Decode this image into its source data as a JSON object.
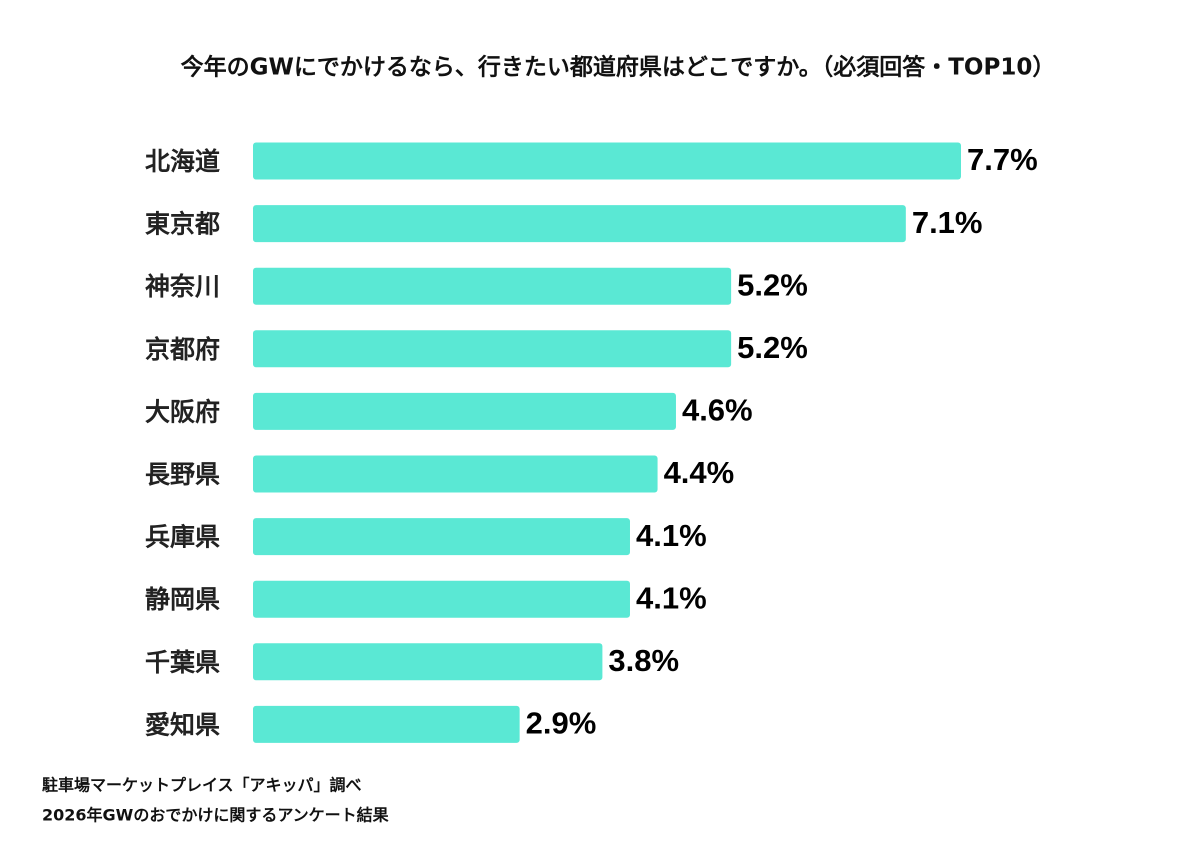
{
  "chart_data": {
    "type": "bar",
    "orientation": "horizontal",
    "title": "今年のGWにでかけるなら、行きたい都道府県はどこですか。（必須回答・TOP10）",
    "categories": [
      "北海道",
      "東京都",
      "神奈川",
      "京都府",
      "大阪府",
      "長野県",
      "兵庫県",
      "静岡県",
      "千葉県",
      "愛知県"
    ],
    "values": [
      7.7,
      7.1,
      5.2,
      5.2,
      4.6,
      4.4,
      4.1,
      4.1,
      3.8,
      2.9
    ],
    "value_labels": [
      "7.7%",
      "7.1%",
      "5.2%",
      "5.2%",
      "4.6%",
      "4.4%",
      "4.1%",
      "4.1%",
      "3.8%",
      "2.9%"
    ],
    "color": "#5ae8d4",
    "footnotes": [
      "駐車場マーケットプレイス「アキッパ」調べ",
      "2026年GWのおでかけに関するアンケート結果"
    ]
  }
}
